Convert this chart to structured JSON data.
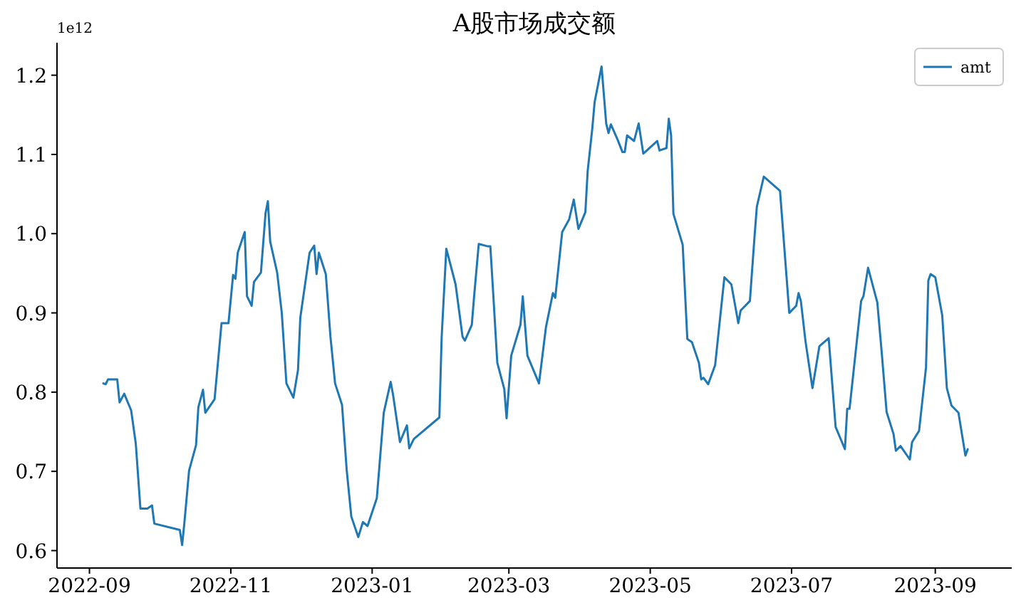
{
  "chart_data": {
    "type": "line",
    "title": "A股市场成交额",
    "annotations": [
      "1e12"
    ],
    "legend": "top right",
    "grid": false,
    "xlim": [
      "2022-08-18",
      "2023-10-04"
    ],
    "ylim": [
      0.578,
      1.241
    ],
    "xticks": [
      "2022-09",
      "2022-11",
      "2023-01",
      "2023-03",
      "2023-05",
      "2023-07",
      "2023-09"
    ],
    "yticks": [
      0.6,
      0.7,
      0.8,
      0.9,
      {
        "value": 1,
        "label": "1.0"
      },
      1.1,
      1.2
    ],
    "x": [
      "2022-09-07",
      "2022-09-08",
      "2022-09-09",
      "2022-09-13",
      "2022-09-14",
      "2022-09-16",
      "2022-09-19",
      "2022-09-21",
      "2022-09-23",
      "2022-09-26",
      "2022-09-28",
      "2022-09-29",
      "2022-10-10",
      "2022-10-11",
      "2022-10-12",
      "2022-10-14",
      "2022-10-17",
      "2022-10-18",
      "2022-10-20",
      "2022-10-21",
      "2022-10-25",
      "2022-10-28",
      "2022-10-31",
      "2022-11-02",
      "2022-11-03",
      "2022-11-04",
      "2022-11-07",
      "2022-11-08",
      "2022-11-10",
      "2022-11-11",
      "2022-11-14",
      "2022-11-16",
      "2022-11-17",
      "2022-11-18",
      "2022-11-21",
      "2022-11-23",
      "2022-11-25",
      "2022-11-28",
      "2022-11-30",
      "2022-12-01",
      "2022-12-05",
      "2022-12-07",
      "2022-12-08",
      "2022-12-09",
      "2022-12-12",
      "2022-12-14",
      "2022-12-16",
      "2022-12-19",
      "2022-12-21",
      "2022-12-23",
      "2022-12-26",
      "2022-12-28",
      "2022-12-30",
      "2023-01-03",
      "2023-01-06",
      "2023-01-09",
      "2023-01-10",
      "2023-01-13",
      "2023-01-16",
      "2023-01-17",
      "2023-01-19",
      "2023-01-30",
      "2023-01-31",
      "2023-02-02",
      "2023-02-06",
      "2023-02-09",
      "2023-02-10",
      "2023-02-13",
      "2023-02-14",
      "2023-02-16",
      "2023-02-20",
      "2023-02-21",
      "2023-02-22",
      "2023-02-24",
      "2023-02-27",
      "2023-02-28",
      "2023-03-02",
      "2023-03-06",
      "2023-03-07",
      "2023-03-09",
      "2023-03-14",
      "2023-03-17",
      "2023-03-20",
      "2023-03-21",
      "2023-03-24",
      "2023-03-27",
      "2023-03-29",
      "2023-03-31",
      "2023-04-03",
      "2023-04-04",
      "2023-04-06",
      "2023-04-07",
      "2023-04-10",
      "2023-04-12",
      "2023-04-13",
      "2023-04-14",
      "2023-04-17",
      "2023-04-19",
      "2023-04-20",
      "2023-04-21",
      "2023-04-24",
      "2023-04-26",
      "2023-04-28",
      "2023-05-04",
      "2023-05-05",
      "2023-05-08",
      "2023-05-09",
      "2023-05-10",
      "2023-05-11",
      "2023-05-15",
      "2023-05-17",
      "2023-05-19",
      "2023-05-22",
      "2023-05-23",
      "2023-05-24",
      "2023-05-26",
      "2023-05-29",
      "2023-06-02",
      "2023-06-05",
      "2023-06-08",
      "2023-06-09",
      "2023-06-13",
      "2023-06-15",
      "2023-06-16",
      "2023-06-19",
      "2023-06-26",
      "2023-06-30",
      "2023-07-03",
      "2023-07-04",
      "2023-07-05",
      "2023-07-07",
      "2023-07-10",
      "2023-07-13",
      "2023-07-17",
      "2023-07-20",
      "2023-07-24",
      "2023-07-25",
      "2023-07-26",
      "2023-07-31",
      "2023-08-01",
      "2023-08-03",
      "2023-08-07",
      "2023-08-09",
      "2023-08-11",
      "2023-08-14",
      "2023-08-15",
      "2023-08-17",
      "2023-08-21",
      "2023-08-22",
      "2023-08-25",
      "2023-08-28",
      "2023-08-29",
      "2023-08-30",
      "2023-09-01",
      "2023-09-04",
      "2023-09-06",
      "2023-09-08",
      "2023-09-11",
      "2023-09-14",
      "2023-09-15"
    ],
    "series": [
      {
        "name": "amt",
        "color": "#1f77b4",
        "values": [
          0.811,
          0.81,
          0.816,
          0.816,
          0.787,
          0.798,
          0.777,
          0.735,
          0.653,
          0.653,
          0.657,
          0.634,
          0.626,
          0.607,
          0.636,
          0.701,
          0.733,
          0.781,
          0.803,
          0.774,
          0.791,
          0.887,
          0.887,
          0.948,
          0.943,
          0.976,
          1.002,
          0.921,
          0.909,
          0.939,
          0.951,
          1.026,
          1.041,
          0.99,
          0.951,
          0.9,
          0.811,
          0.793,
          0.828,
          0.894,
          0.976,
          0.985,
          0.949,
          0.976,
          0.949,
          0.87,
          0.811,
          0.784,
          0.702,
          0.643,
          0.617,
          0.636,
          0.631,
          0.666,
          0.774,
          0.813,
          0.797,
          0.737,
          0.758,
          0.729,
          0.741,
          0.768,
          0.87,
          0.981,
          0.936,
          0.87,
          0.865,
          0.885,
          0.921,
          0.987,
          0.984,
          0.984,
          0.936,
          0.837,
          0.804,
          0.767,
          0.846,
          0.885,
          0.921,
          0.846,
          0.811,
          0.882,
          0.925,
          0.919,
          1.002,
          1.018,
          1.043,
          1.006,
          1.027,
          1.079,
          1.133,
          1.166,
          1.211,
          1.139,
          1.127,
          1.138,
          1.118,
          1.103,
          1.103,
          1.124,
          1.117,
          1.139,
          1.101,
          1.117,
          1.105,
          1.108,
          1.145,
          1.124,
          1.025,
          0.986,
          0.867,
          0.863,
          0.837,
          0.816,
          0.818,
          0.81,
          0.834,
          0.945,
          0.936,
          0.887,
          0.903,
          0.915,
          0.996,
          1.034,
          1.072,
          1.054,
          0.9,
          0.909,
          0.925,
          0.915,
          0.864,
          0.805,
          0.858,
          0.868,
          0.756,
          0.728,
          0.779,
          0.779,
          0.915,
          0.921,
          0.957,
          0.913,
          0.846,
          0.775,
          0.747,
          0.726,
          0.732,
          0.715,
          0.737,
          0.751,
          0.831,
          0.941,
          0.949,
          0.945,
          0.897,
          0.805,
          0.783,
          0.774,
          0.72,
          0.728
        ]
      }
    ]
  }
}
